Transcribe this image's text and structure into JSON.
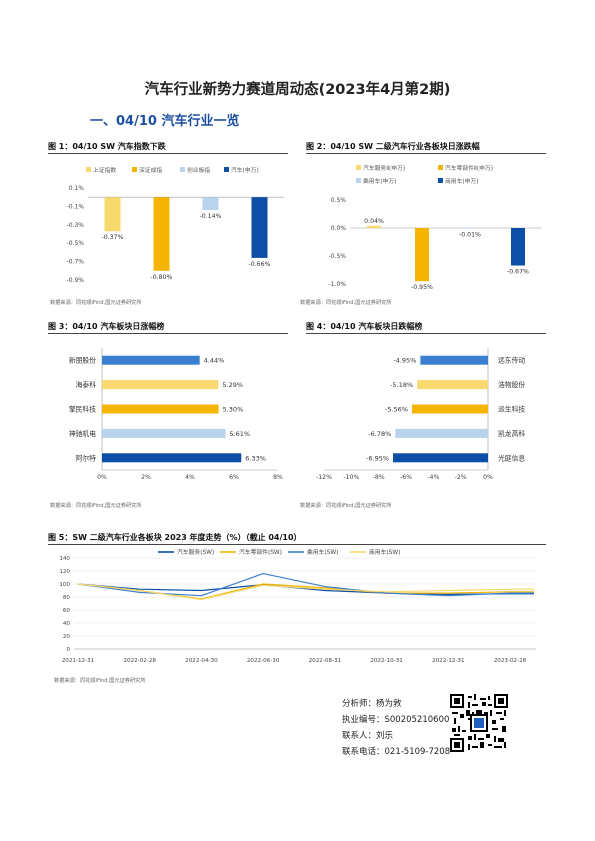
{
  "title": "汽车行业新势力赛道周动态(2023年4月第2期)",
  "section": "一、04/10 汽车行业一览",
  "source": "数据来源：同花顺iFind,国元证券研究所",
  "figures": [
    {
      "label": "图 1：04/10 SW 汽车指数下跌"
    },
    {
      "label": "图 2：04/10 SW 二级汽车行业各板块日涨跌幅"
    },
    {
      "label": "图 3：04/10 汽车板块日涨幅榜"
    },
    {
      "label": "图 4：04/10 汽车板块日跌幅榜"
    },
    {
      "label": "图 5：SW 二级汽车行业各板块 2023 年度走势（%）（截止 04/10）"
    }
  ],
  "chart_data": [
    {
      "type": "bar",
      "categories": [
        "上证指数",
        "深证成指",
        "创业板指",
        "汽车(申万)"
      ],
      "values": [
        -0.37,
        -0.8,
        -0.14,
        -0.66
      ],
      "value_labels": [
        "-0.37%",
        "-0.80%",
        "-0.14%",
        "-0.66%"
      ],
      "colors": [
        "#f7d96e",
        "#f4b400",
        "#b9d3ec",
        "#0d4ea6"
      ],
      "yticks": [
        "0.1%",
        "-0.1%",
        "-0.3%",
        "-0.5%",
        "-0.7%",
        "-0.9%"
      ],
      "ylim": [
        -0.9,
        0.1
      ],
      "legend": "top"
    },
    {
      "type": "bar",
      "categories": [
        "汽车服务Ⅱ(申万)",
        "汽车零部件Ⅱ(申万)",
        "乘用车(申万)",
        "商用车(申万)"
      ],
      "values": [
        0.04,
        -0.95,
        -0.01,
        -0.67
      ],
      "value_labels": [
        "0.04%",
        "-0.95%",
        "-0.01%",
        "-0.67%"
      ],
      "colors": [
        "#f7d96e",
        "#f4b400",
        "#b9d3ec",
        "#0d4ea6"
      ],
      "yticks": [
        "0.5%",
        "0.0%",
        "-0.5%",
        "-1.0%"
      ],
      "ylim": [
        -1.0,
        0.5
      ],
      "legend": "top"
    },
    {
      "type": "bar",
      "orientation": "horizontal",
      "categories": [
        "新朋股份",
        "海泰科",
        "擎民科技",
        "神驰机电",
        "阿尔特"
      ],
      "values": [
        4.44,
        5.29,
        5.3,
        5.61,
        6.33
      ],
      "value_labels": [
        "4.44%",
        "5.29%",
        "5.30%",
        "5.61%",
        "6.33%"
      ],
      "colors": [
        "#3b7fd0",
        "#f7d96e",
        "#f4b400",
        "#b9d3ec",
        "#0d4ea6"
      ],
      "xticks": [
        "0%",
        "2%",
        "4%",
        "6%",
        "8%"
      ],
      "xlim": [
        0,
        8
      ]
    },
    {
      "type": "bar",
      "orientation": "horizontal",
      "categories": [
        "远东传动",
        "浩物股份",
        "派生科技",
        "凯龙高科",
        "光庭信息"
      ],
      "values": [
        -4.95,
        -5.18,
        -5.56,
        -6.78,
        -6.95
      ],
      "value_labels": [
        "-4.95%",
        "-5.18%",
        "-5.56%",
        "-6.78%",
        "-6.95%"
      ],
      "colors": [
        "#3b7fd0",
        "#f7d96e",
        "#f4b400",
        "#b9d3ec",
        "#0d4ea6"
      ],
      "xticks": [
        "-12%",
        "-10%",
        "-8%",
        "-6%",
        "-4%",
        "-2%",
        "0%"
      ],
      "xlim": [
        -12,
        0
      ]
    },
    {
      "type": "line",
      "x": [
        "2021-12-31",
        "2022-02-28",
        "2022-04-30",
        "2022-06-30",
        "2022-08-31",
        "2022-10-31",
        "2022-12-31",
        "2023-02-28"
      ],
      "ylim": [
        0,
        140
      ],
      "yticks": [
        "0",
        "20",
        "40",
        "60",
        "80",
        "100",
        "120",
        "140"
      ],
      "series": [
        {
          "name": "汽车服务(SW)",
          "color": "#0d4ea6",
          "values": [
            100,
            92,
            90,
            99,
            90,
            86,
            84,
            85
          ]
        },
        {
          "name": "汽车零部件(SW)",
          "color": "#f4b400",
          "values": [
            100,
            90,
            77,
            100,
            94,
            86,
            86,
            88
          ]
        },
        {
          "name": "乘用车(SW)",
          "color": "#3b7fd0",
          "values": [
            100,
            87,
            82,
            116,
            96,
            86,
            82,
            86
          ]
        },
        {
          "name": "商用车(SW)",
          "color": "#f7d96e",
          "values": [
            100,
            90,
            76,
            98,
            92,
            88,
            90,
            92
          ]
        }
      ],
      "legend": "top"
    }
  ],
  "analyst": {
    "name_line": "分析师：杨为敩",
    "cert_line": "执业编号：S0020521060001",
    "contact_line": "联系人：刘乐",
    "phone_line": "联系电话：021-5109-7208"
  }
}
